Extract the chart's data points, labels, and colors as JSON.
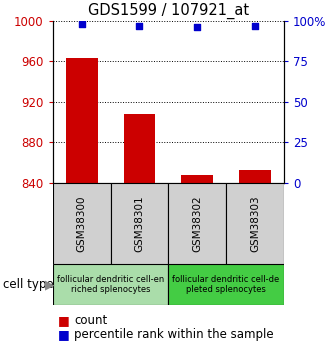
{
  "title": "GDS1599 / 107921_at",
  "samples": [
    "GSM38300",
    "GSM38301",
    "GSM38302",
    "GSM38303"
  ],
  "count_values": [
    963,
    908,
    848,
    853
  ],
  "percentile_values": [
    98,
    97,
    96,
    97
  ],
  "ylim_left": [
    840,
    1000
  ],
  "ylim_right": [
    0,
    100
  ],
  "yticks_left": [
    840,
    880,
    920,
    960,
    1000
  ],
  "yticks_right": [
    0,
    25,
    50,
    75,
    100
  ],
  "yticklabels_right": [
    "0",
    "25",
    "50",
    "75",
    "100%"
  ],
  "bar_color": "#cc0000",
  "scatter_color": "#0000cc",
  "bar_width": 0.55,
  "cell_types": [
    {
      "label": "follicular dendritic cell-en\nriched splenocytes",
      "samples": [
        0,
        1
      ],
      "color": "#aaddaa"
    },
    {
      "label": "follicular dendritic cell-de\npleted splenocytes",
      "samples": [
        2,
        3
      ],
      "color": "#44cc44"
    }
  ],
  "cell_type_label": "cell type",
  "legend_count_label": "count",
  "legend_percentile_label": "percentile rank within the sample",
  "tick_label_color_left": "#cc0000",
  "tick_label_color_right": "#0000cc",
  "sample_box_color": "#d0d0d0",
  "bg_color": "#ffffff"
}
